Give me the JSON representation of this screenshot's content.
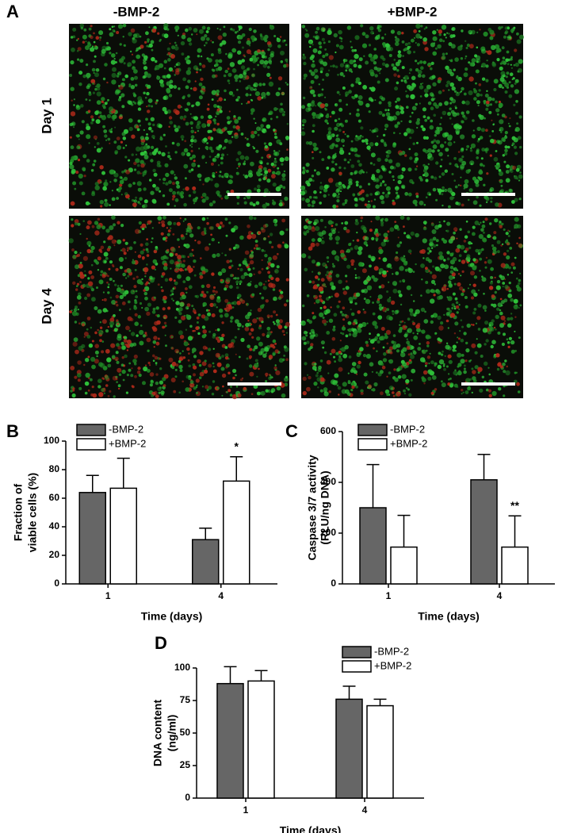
{
  "image_panel": {
    "label": "A",
    "columns": [
      "-BMP-2",
      "+BMP-2"
    ],
    "rows": [
      "Day 1",
      "Day 4"
    ]
  },
  "chart_data": [
    {
      "type": "bar",
      "label": "B",
      "categories": [
        "1",
        "4"
      ],
      "xlabel": "Time (days)",
      "ylabel": [
        "Fraction of",
        "viable cells (%)"
      ],
      "ylim": [
        0,
        100
      ],
      "yticks": [
        0,
        20,
        40,
        60,
        80,
        100
      ],
      "series": [
        {
          "name": "-BMP-2",
          "color": "#666666",
          "values": [
            64,
            31
          ],
          "errors": [
            12,
            8
          ]
        },
        {
          "name": "+BMP-2",
          "color": "#ffffff",
          "values": [
            67,
            72
          ],
          "errors": [
            21,
            17
          ]
        }
      ],
      "annotations": [
        "*"
      ]
    },
    {
      "type": "bar",
      "label": "C",
      "categories": [
        "1",
        "4"
      ],
      "xlabel": "Time (days)",
      "ylabel": [
        "Caspase 3/7 activity",
        "(RLU/ng DNA)"
      ],
      "ylim": [
        0,
        600
      ],
      "yticks": [
        0,
        200,
        400,
        600
      ],
      "series": [
        {
          "name": "-BMP-2",
          "color": "#666666",
          "values": [
            300,
            410
          ],
          "errors": [
            170,
            100
          ]
        },
        {
          "name": "+BMP-2",
          "color": "#ffffff",
          "values": [
            145,
            145
          ],
          "errors": [
            125,
            123
          ]
        }
      ],
      "annotations": [
        "**"
      ]
    },
    {
      "type": "bar",
      "label": "D",
      "categories": [
        "1",
        "4"
      ],
      "xlabel": "Time (days)",
      "ylabel": [
        "DNA content",
        "(ng/ml)"
      ],
      "ylim": [
        0,
        100
      ],
      "yticks": [
        0,
        25,
        50,
        75,
        100
      ],
      "series": [
        {
          "name": "-BMP-2",
          "color": "#666666",
          "values": [
            88,
            76
          ],
          "errors": [
            13,
            10
          ]
        },
        {
          "name": "+BMP-2",
          "color": "#ffffff",
          "values": [
            90,
            71
          ],
          "errors": [
            8,
            5
          ]
        }
      ],
      "annotations": []
    }
  ]
}
